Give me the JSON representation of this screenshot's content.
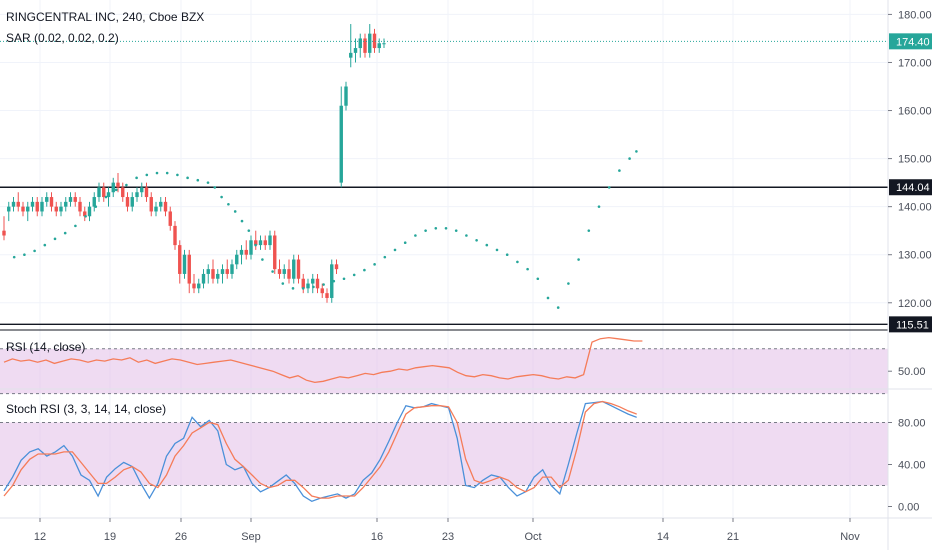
{
  "header": {
    "symbol_title": "RINGCENTRAL INC, 240, Cboe BZX",
    "sar_label": "SAR (0.02, 0.02, 0.2)",
    "rsi_label": "RSI (14, close)",
    "stoch_label": "Stoch RSI (3, 3, 14, 14, close)"
  },
  "chart_data": [
    {
      "type": "candlestick",
      "title": "RINGCENTRAL INC, 240, Cboe BZX",
      "ylim": [
        116,
        183
      ],
      "y_ticks": [
        "120.00",
        "130.00",
        "140.00",
        "150.00",
        "160.00",
        "170.00",
        "180.00"
      ],
      "x_ticks": [
        "12",
        "19",
        "26",
        "Sep",
        "16",
        "23",
        "Oct",
        "14",
        "21",
        "Nov"
      ],
      "last_price": "174.40",
      "horizontal_lines": [
        {
          "label": "144.04",
          "value": 144.04
        },
        {
          "label": "115.51",
          "value": 115.51
        }
      ],
      "candles": [
        [
          135,
          138,
          133,
          134
        ],
        [
          139,
          141,
          137,
          140
        ],
        [
          140,
          142,
          139,
          141
        ],
        [
          141,
          143,
          139,
          140
        ],
        [
          140,
          141,
          138,
          139
        ],
        [
          139,
          141,
          137,
          140
        ],
        [
          140,
          142,
          139,
          141
        ],
        [
          141,
          142,
          138,
          139
        ],
        [
          139,
          142,
          138,
          141
        ],
        [
          141,
          143,
          140,
          142
        ],
        [
          142,
          143,
          139,
          140
        ],
        [
          140,
          141,
          138,
          139
        ],
        [
          139,
          141,
          138,
          140
        ],
        [
          140,
          142,
          139,
          141
        ],
        [
          141,
          143,
          140,
          142
        ],
        [
          142,
          143,
          140,
          141
        ],
        [
          141,
          142,
          138,
          139
        ],
        [
          139,
          140,
          137,
          138
        ],
        [
          138,
          141,
          137,
          140
        ],
        [
          140,
          143,
          139,
          142
        ],
        [
          142,
          145,
          141,
          144
        ],
        [
          144,
          145,
          141,
          142
        ],
        [
          142,
          144,
          140,
          143
        ],
        [
          143,
          146,
          142,
          145
        ],
        [
          145,
          147,
          143,
          144
        ],
        [
          144,
          145,
          141,
          142
        ],
        [
          142,
          143,
          139,
          140
        ],
        [
          140,
          143,
          139,
          142
        ],
        [
          142,
          144,
          141,
          143
        ],
        [
          143,
          145,
          142,
          144
        ],
        [
          144,
          145,
          141,
          142
        ],
        [
          142,
          143,
          138,
          139
        ],
        [
          139,
          141,
          138,
          140
        ],
        [
          140,
          142,
          139,
          141
        ],
        [
          141,
          142,
          138,
          139
        ],
        [
          139,
          140,
          135,
          136
        ],
        [
          136,
          137,
          131,
          132
        ],
        [
          132,
          133,
          124,
          126
        ],
        [
          126,
          131,
          125,
          130
        ],
        [
          130,
          131,
          122,
          124
        ],
        [
          124,
          126,
          122,
          123
        ],
        [
          123,
          125,
          122,
          124
        ],
        [
          124,
          127,
          123,
          126
        ],
        [
          126,
          128,
          124,
          127
        ],
        [
          127,
          129,
          124,
          125
        ],
        [
          125,
          127,
          124,
          126
        ],
        [
          126,
          128,
          124,
          127
        ],
        [
          127,
          129,
          125,
          126
        ],
        [
          126,
          129,
          125,
          128
        ],
        [
          128,
          131,
          127,
          130
        ],
        [
          130,
          132,
          128,
          131
        ],
        [
          131,
          133,
          129,
          130
        ],
        [
          130,
          134,
          129,
          133
        ],
        [
          133,
          135,
          131,
          132
        ],
        [
          132,
          134,
          131,
          133
        ],
        [
          133,
          134,
          131,
          132
        ],
        [
          132,
          135,
          131,
          134
        ],
        [
          134,
          135,
          126,
          127
        ],
        [
          127,
          129,
          125,
          126
        ],
        [
          126,
          128,
          125,
          127
        ],
        [
          127,
          129,
          124,
          125
        ],
        [
          125,
          130,
          124,
          129
        ],
        [
          129,
          130,
          124,
          125
        ],
        [
          125,
          126,
          122,
          123
        ],
        [
          123,
          125,
          122,
          124
        ],
        [
          124,
          126,
          122,
          125
        ],
        [
          125,
          126,
          122,
          123
        ],
        [
          123,
          124,
          121,
          122
        ],
        [
          122,
          123,
          120,
          121
        ],
        [
          121,
          129,
          120,
          128
        ],
        [
          128,
          129,
          126,
          127
        ],
        [
          145,
          165,
          144,
          161
        ],
        [
          161,
          166,
          160,
          165
        ],
        [
          171,
          178,
          169,
          172
        ],
        [
          172,
          175,
          170,
          173
        ],
        [
          173,
          176,
          171,
          175
        ],
        [
          175,
          176,
          171,
          172
        ],
        [
          172,
          178,
          171,
          176
        ],
        [
          176,
          177,
          172,
          173
        ],
        [
          173,
          175,
          172,
          174
        ],
        [
          174,
          175,
          173,
          174
        ]
      ],
      "sar": [
        [
          3,
          129.5
        ],
        [
          6,
          130
        ],
        [
          9,
          130.8
        ],
        [
          12,
          132
        ],
        [
          15,
          133.3
        ],
        [
          18,
          134.5
        ],
        [
          21,
          136
        ],
        [
          24,
          138
        ],
        [
          27,
          140
        ],
        [
          30,
          142
        ],
        [
          33,
          143.5
        ],
        [
          36,
          144.5
        ],
        [
          39,
          146
        ],
        [
          42,
          146.6
        ],
        [
          45,
          147
        ],
        [
          48,
          147
        ],
        [
          51,
          146.6
        ],
        [
          54,
          146
        ],
        [
          57,
          145.5
        ],
        [
          60,
          145
        ],
        [
          62,
          144
        ],
        [
          64,
          142
        ],
        [
          66,
          140.5
        ],
        [
          68,
          139
        ],
        [
          70,
          137
        ],
        [
          72,
          135
        ],
        [
          74,
          132
        ],
        [
          76,
          129
        ],
        [
          79,
          126.5
        ],
        [
          82,
          124
        ],
        [
          85,
          123
        ],
        [
          88,
          123
        ],
        [
          91,
          123.3
        ],
        [
          94,
          123.8
        ],
        [
          97,
          124.5
        ],
        [
          100,
          125
        ],
        [
          103,
          125.8
        ],
        [
          106,
          126.8
        ],
        [
          109,
          128
        ],
        [
          112,
          129.5
        ],
        [
          115,
          131
        ],
        [
          118,
          132.5
        ],
        [
          121,
          134
        ],
        [
          124,
          135
        ],
        [
          127,
          135.5
        ],
        [
          130,
          135.5
        ],
        [
          133,
          135
        ],
        [
          136,
          134
        ],
        [
          139,
          133
        ],
        [
          142,
          132
        ],
        [
          145,
          131
        ],
        [
          148,
          130
        ],
        [
          151,
          128.5
        ],
        [
          154,
          127
        ],
        [
          157,
          125
        ],
        [
          160,
          121
        ],
        [
          163,
          119
        ],
        [
          166,
          124
        ],
        [
          169,
          129
        ],
        [
          172,
          135
        ],
        [
          175,
          140
        ],
        [
          178,
          144
        ],
        [
          181,
          147.5
        ],
        [
          184,
          150
        ],
        [
          186,
          151.5
        ]
      ]
    },
    {
      "type": "line",
      "title": "RSI (14, close)",
      "ylim": [
        35,
        85
      ],
      "y_ticks": [
        "50.00"
      ],
      "band": [
        30,
        70
      ],
      "series": [
        {
          "name": "",
          "values": [
            58,
            61,
            59,
            60,
            58,
            60,
            57,
            59,
            61,
            60,
            58,
            60,
            59,
            61,
            60,
            62,
            58,
            60,
            57,
            59,
            61,
            60,
            58,
            56,
            57,
            58,
            59,
            60,
            58,
            56,
            54,
            52,
            50,
            47,
            44,
            46,
            42,
            40,
            41,
            43,
            45,
            44,
            46,
            48,
            47,
            49,
            50,
            52,
            51,
            53,
            54,
            55,
            54,
            53,
            49,
            46,
            45,
            47,
            46,
            44,
            43,
            45,
            46,
            47,
            46,
            44,
            43,
            45,
            44,
            47,
            76,
            79,
            80,
            79,
            78,
            77,
            77
          ]
        }
      ]
    },
    {
      "type": "line",
      "title": "Stoch RSI (3, 3, 14, 14, close)",
      "ylim": [
        -10,
        110
      ],
      "y_ticks": [
        "0.00",
        "40.00",
        "80.00"
      ],
      "band": [
        20,
        80
      ],
      "series": [
        {
          "name": "",
          "values": [
            15,
            28,
            44,
            52,
            55,
            48,
            52,
            58,
            48,
            30,
            25,
            10,
            28,
            36,
            42,
            38,
            22,
            8,
            22,
            48,
            60,
            65,
            85,
            76,
            82,
            72,
            40,
            35,
            38,
            22,
            14,
            18,
            24,
            30,
            22,
            10,
            5,
            8,
            10,
            12,
            8,
            12,
            25,
            32,
            45,
            62,
            80,
            96,
            94,
            95,
            98,
            96,
            94,
            65,
            20,
            18,
            25,
            30,
            28,
            18,
            10,
            14,
            28,
            35,
            20,
            12,
            40,
            70,
            98,
            99,
            100,
            96,
            92,
            88,
            85
          ]
        },
        {
          "name": "",
          "values": [
            10,
            20,
            35,
            45,
            50,
            50,
            50,
            52,
            52,
            42,
            32,
            22,
            22,
            28,
            35,
            38,
            33,
            22,
            18,
            30,
            48,
            58,
            70,
            75,
            80,
            78,
            60,
            45,
            38,
            30,
            22,
            18,
            20,
            25,
            25,
            18,
            10,
            8,
            8,
            10,
            10,
            10,
            18,
            28,
            38,
            52,
            70,
            88,
            94,
            95,
            96,
            96,
            95,
            80,
            45,
            25,
            22,
            25,
            28,
            25,
            18,
            14,
            18,
            28,
            28,
            18,
            25,
            55,
            90,
            98,
            100,
            98,
            95,
            91,
            88
          ]
        }
      ]
    }
  ]
}
